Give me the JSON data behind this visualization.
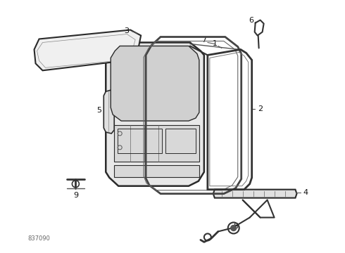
{
  "background_color": "#ffffff",
  "line_color": "#2a2a2a",
  "label_color": "#111111",
  "diagram_id": "837090",
  "fig_width": 4.9,
  "fig_height": 3.6,
  "dpi": 100
}
